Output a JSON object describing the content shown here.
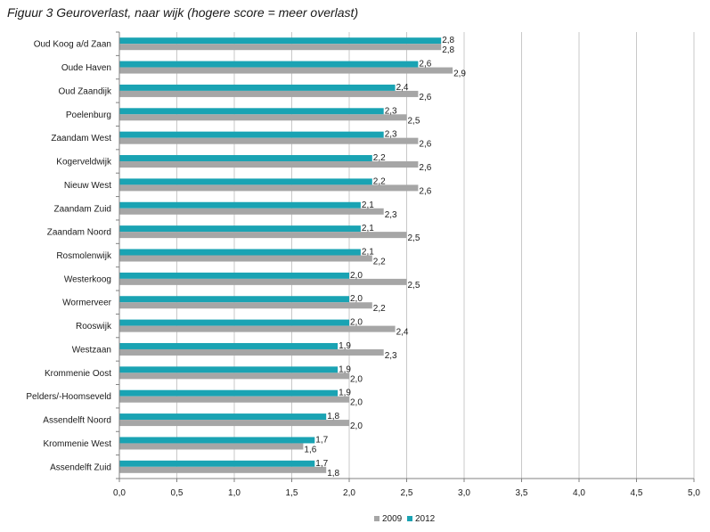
{
  "title": "Figuur 3 Geuroverlast, naar wijk (hogere score = meer overlast)",
  "chart_data": {
    "type": "bar",
    "orientation": "horizontal",
    "title": "Figuur 3 Geuroverlast, naar wijk (hogere score = meer overlast)",
    "categories": [
      "Oud Koog a/d Zaan",
      "Oude Haven",
      "Oud Zaandijk",
      "Poelenburg",
      "Zaandam West",
      "Kogerveldwijk",
      "Nieuw West",
      "Zaandam Zuid",
      "Zaandam Noord",
      "Rosmolenwijk",
      "Westerkoog",
      "Wormerveer",
      "Rooswijk",
      "Westzaan",
      "Krommenie Oost",
      "Pelders/-Hoomseveld",
      "Assendelft Noord",
      "Krommenie West",
      "Assendelft Zuid"
    ],
    "series": [
      {
        "name": "2012",
        "color": "#1aa3b3",
        "values": [
          2.8,
          2.6,
          2.4,
          2.3,
          2.3,
          2.2,
          2.2,
          2.1,
          2.1,
          2.1,
          2.0,
          2.0,
          2.0,
          1.9,
          1.9,
          1.9,
          1.8,
          1.7,
          1.7
        ],
        "labels": [
          "2,8",
          "2,6",
          "2,4",
          "2,3",
          "2,3",
          "2,2",
          "2,2",
          "2,1",
          "2,1",
          "2,1",
          "2,0",
          "2,0",
          "2,0",
          "1,9",
          "1,9",
          "1,9",
          "1,8",
          "1,7",
          "1,7"
        ]
      },
      {
        "name": "2009",
        "color": "#a6a6a6",
        "values": [
          2.8,
          2.9,
          2.6,
          2.5,
          2.6,
          2.6,
          2.6,
          2.3,
          2.5,
          2.2,
          2.5,
          2.2,
          2.4,
          2.3,
          2.0,
          2.0,
          2.0,
          1.6,
          1.8
        ],
        "labels": [
          "2,8",
          "2,9",
          "2,6",
          "2,5",
          "2,6",
          "2,6",
          "2,6",
          "2,3",
          "2,5",
          "2,2",
          "2,5",
          "2,2",
          "2,4",
          "2,3",
          "2,0",
          "2,0",
          "2,0",
          "1,6",
          "1,8"
        ]
      }
    ],
    "xlim": [
      0,
      5
    ],
    "xticks": [
      "0,0",
      "0,5",
      "1,0",
      "1,5",
      "2,0",
      "2,5",
      "3,0",
      "3,5",
      "4,0",
      "4,5",
      "5,0"
    ],
    "grid": true,
    "legend": {
      "placement": "bottom",
      "entries": [
        {
          "label": "2009",
          "color": "#a6a6a6"
        },
        {
          "label": "2012",
          "color": "#1aa3b3"
        }
      ]
    }
  }
}
